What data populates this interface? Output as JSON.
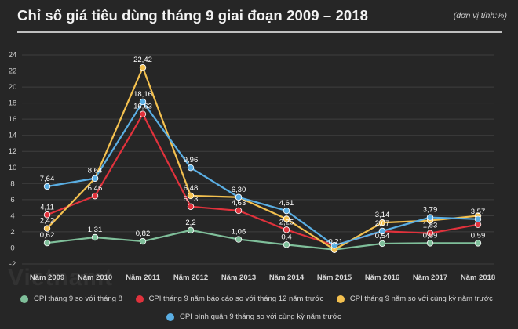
{
  "header": {
    "title": "Chỉ số giá tiêu dùng tháng 9  giai đoạn 2009 – 2018",
    "unit_note": "(đơn vị tính:%)"
  },
  "watermark": "Vietnamt",
  "chart_data": {
    "type": "line",
    "categories": [
      "Năm 2009",
      "Năm 2010",
      "Năm 2011",
      "Năm 2012",
      "Năm 2013",
      "Năm 2014",
      "Năm 2015",
      "Năm 2016",
      "Năm 2017",
      "Năm 2018"
    ],
    "ylim": [
      -2,
      24
    ],
    "yticks": [
      -2,
      0,
      2,
      4,
      6,
      8,
      10,
      12,
      14,
      16,
      18,
      20,
      22,
      24
    ],
    "grid": true,
    "series": [
      {
        "name": "CPI tháng 9 so với tháng 8",
        "color": "#7fbf9a",
        "values": [
          0.62,
          1.31,
          0.82,
          2.2,
          1.06,
          0.4,
          -0.21,
          0.54,
          0.59,
          0.59
        ],
        "labels": [
          "0,62",
          "1,31",
          "0,82",
          "2,2",
          "1,06",
          "0,4",
          "",
          "0,54",
          "0,59",
          "0,59"
        ]
      },
      {
        "name": "CPI tháng 9 năm báo cáo so với tháng 12 năm trước",
        "color": "#e0323c",
        "values": [
          4.11,
          6.46,
          16.63,
          5.13,
          4.63,
          2.25,
          0.3,
          2.07,
          1.83,
          2.9
        ],
        "labels": [
          "4,11",
          "6,46",
          "16,63",
          "5,13",
          "4,63",
          "2,25",
          "",
          "2,07",
          "1,83",
          ""
        ]
      },
      {
        "name": "CPI tháng 9 năm so với cùng kỳ năm trước",
        "color": "#f3c04f",
        "values": [
          2.42,
          8.64,
          22.42,
          6.48,
          6.3,
          3.6,
          -0.21,
          3.14,
          3.4,
          3.98
        ],
        "labels": [
          "2,42",
          "",
          "22,42",
          "6,48",
          "",
          "",
          "-0,21",
          "3,14",
          "",
          ""
        ]
      },
      {
        "name": "CPI bình quân 9 tháng so với cùng kỳ năm trước",
        "color": "#5aaee3",
        "values": [
          7.64,
          8.64,
          18.16,
          9.96,
          6.3,
          4.61,
          0.3,
          2.1,
          3.79,
          3.57
        ],
        "labels": [
          "7,64",
          "8,64",
          "18,16",
          "9,96",
          "6,30",
          "4,61",
          "",
          "",
          "3,79",
          "3,57"
        ]
      }
    ]
  }
}
